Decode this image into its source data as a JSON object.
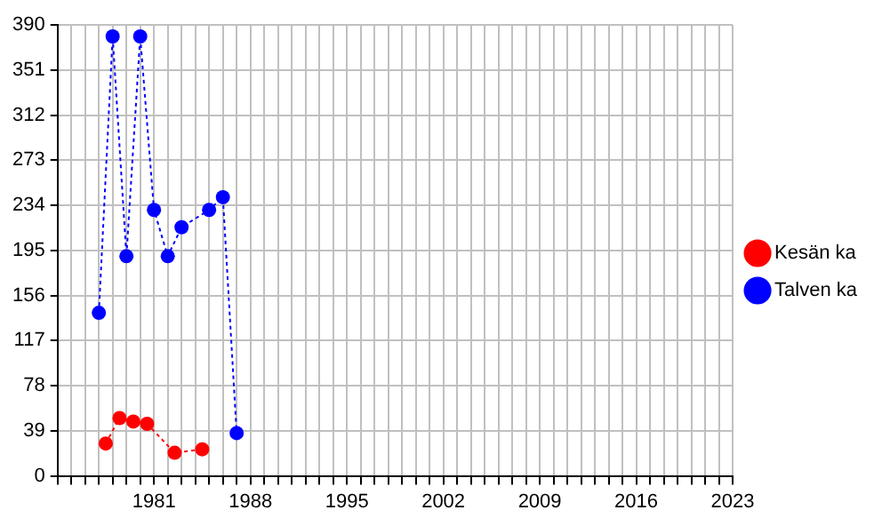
{
  "chart_data": {
    "type": "line",
    "series": [
      {
        "name": "Kesän ka",
        "color": "#ff0000",
        "x": [
          1977.5,
          1978.5,
          1979.5,
          1980.5,
          1982.5,
          1984.5
        ],
        "values": [
          28,
          50,
          47,
          45,
          20,
          23
        ]
      },
      {
        "name": "Talven ka",
        "color": "#0000ff",
        "x": [
          1977,
          1978,
          1979,
          1980,
          1981,
          1982,
          1983,
          1985,
          1986,
          1987
        ],
        "values": [
          141,
          380,
          190,
          380,
          230,
          190,
          215,
          230,
          241,
          37
        ]
      }
    ],
    "xlim": [
      1974,
      2023
    ],
    "xticks": [
      {
        "value": 1974,
        "label": null
      },
      {
        "value": 1975,
        "label": null
      },
      {
        "value": 1976,
        "label": null
      },
      {
        "value": 1977,
        "label": null
      },
      {
        "value": 1978,
        "label": null
      },
      {
        "value": 1979,
        "label": null
      },
      {
        "value": 1980,
        "label": null
      },
      1981,
      {
        "value": 1982,
        "label": null
      },
      {
        "value": 1983,
        "label": null
      },
      {
        "value": 1984,
        "label": null
      },
      {
        "value": 1985,
        "label": null
      },
      {
        "value": 1986,
        "label": null
      },
      {
        "value": 1987,
        "label": null
      },
      1988,
      {
        "value": 1989,
        "label": null
      },
      {
        "value": 1990,
        "label": null
      },
      {
        "value": 1991,
        "label": null
      },
      {
        "value": 1992,
        "label": null
      },
      {
        "value": 1993,
        "label": null
      },
      {
        "value": 1994,
        "label": null
      },
      1995,
      {
        "value": 1996,
        "label": null
      },
      {
        "value": 1997,
        "label": null
      },
      {
        "value": 1998,
        "label": null
      },
      {
        "value": 1999,
        "label": null
      },
      {
        "value": 2000,
        "label": null
      },
      {
        "value": 2001,
        "label": null
      },
      2002,
      {
        "value": 2003,
        "label": null
      },
      {
        "value": 2004,
        "label": null
      },
      {
        "value": 2005,
        "label": null
      },
      {
        "value": 2006,
        "label": null
      },
      {
        "value": 2007,
        "label": null
      },
      {
        "value": 2008,
        "label": null
      },
      2009,
      {
        "value": 2010,
        "label": null
      },
      {
        "value": 2011,
        "label": null
      },
      {
        "value": 2012,
        "label": null
      },
      {
        "value": 2013,
        "label": null
      },
      {
        "value": 2014,
        "label": null
      },
      {
        "value": 2015,
        "label": null
      },
      2016,
      {
        "value": 2017,
        "label": null
      },
      {
        "value": 2018,
        "label": null
      },
      {
        "value": 2019,
        "label": null
      },
      {
        "value": 2020,
        "label": null
      },
      {
        "value": 2021,
        "label": null
      },
      {
        "value": 2022,
        "label": null
      },
      2023
    ],
    "ylim": [
      0,
      390
    ],
    "yticks": [
      0,
      39,
      78,
      117,
      156,
      195,
      234,
      273,
      312,
      351,
      390
    ],
    "grid": true,
    "legend": "right",
    "marker": "circle",
    "line_style": "dotted"
  }
}
